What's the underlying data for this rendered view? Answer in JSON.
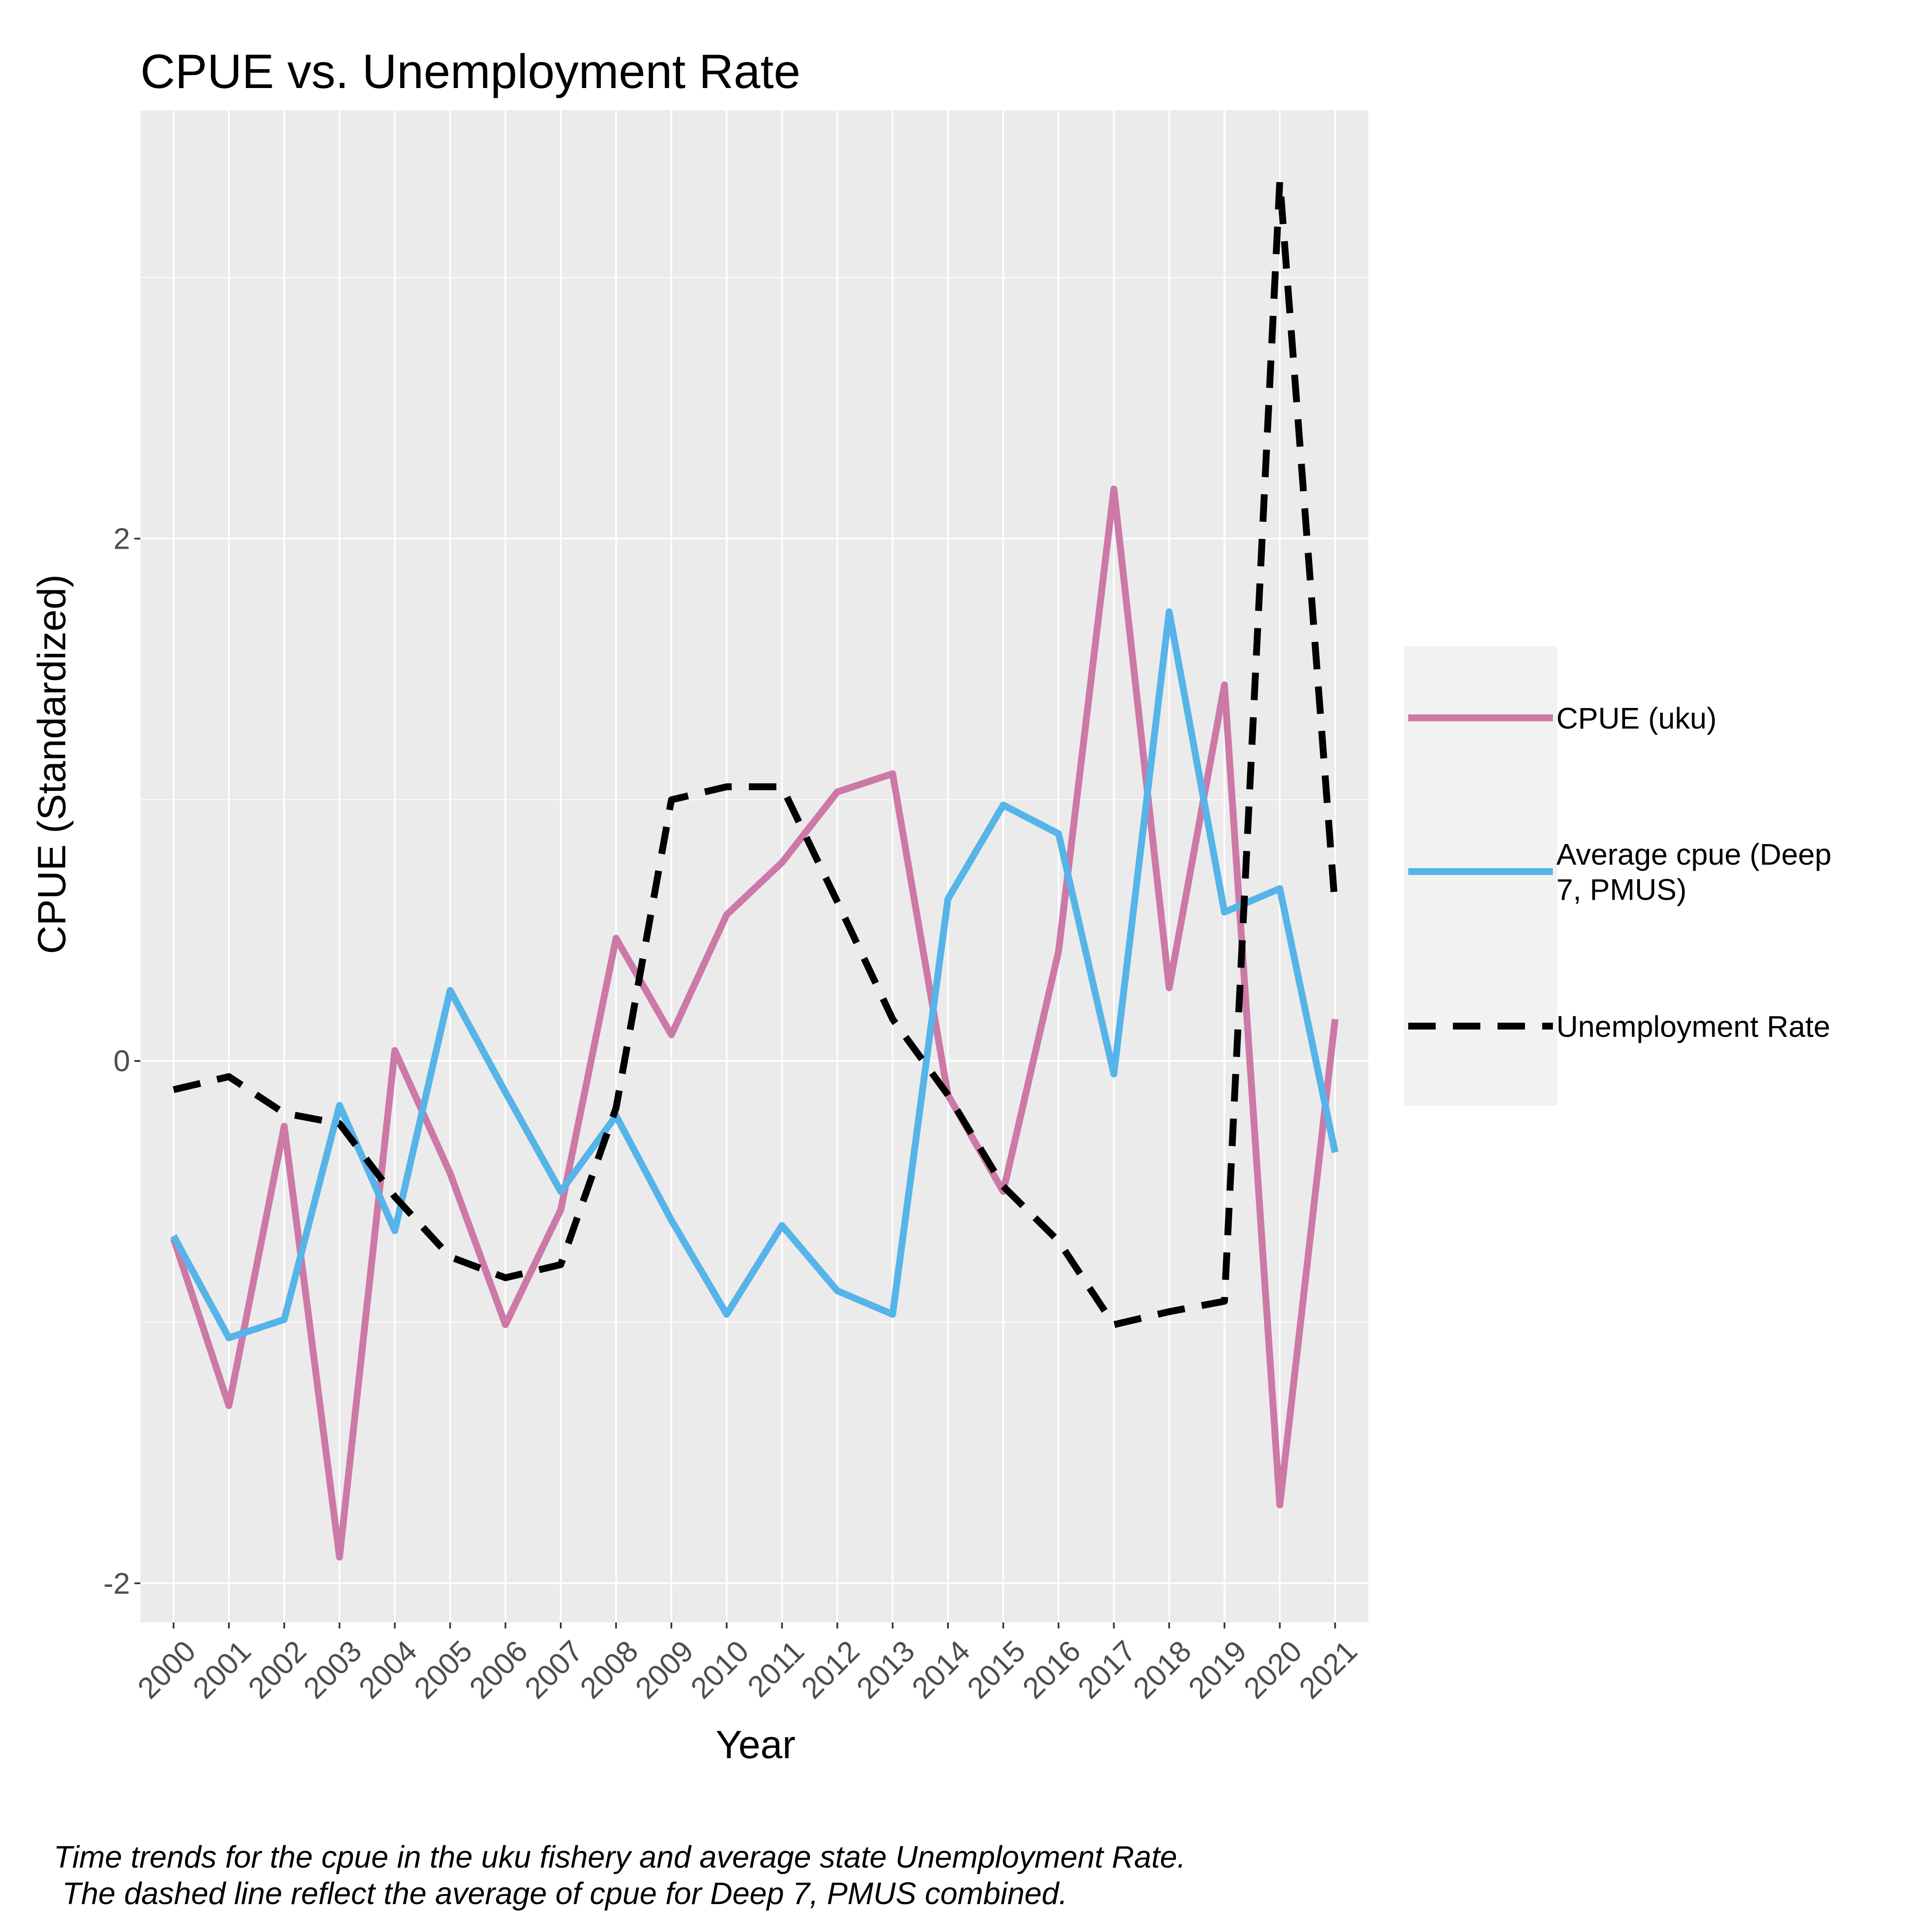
{
  "chart_data": {
    "type": "line",
    "title": "CPUE vs. Unemployment Rate",
    "xlabel": "Year",
    "ylabel": "CPUE (Standardized)",
    "x": [
      "2000",
      "2001",
      "2002",
      "2003",
      "2004",
      "2005",
      "2006",
      "2007",
      "2008",
      "2009",
      "2010",
      "2011",
      "2012",
      "2013",
      "2014",
      "2015",
      "2016",
      "2017",
      "2018",
      "2019",
      "2020",
      "2021"
    ],
    "yticks": [
      -2,
      0,
      2
    ],
    "ylim": [
      -2.15,
      3.64
    ],
    "grid": true,
    "legend_position": "right",
    "series": [
      {
        "name": "CPUE (uku)",
        "color": "#CC79A7",
        "dash": "solid",
        "values": [
          -0.68,
          -1.32,
          -0.25,
          -1.9,
          0.04,
          -0.43,
          -1.01,
          -0.57,
          0.47,
          0.1,
          0.56,
          0.76,
          1.03,
          1.1,
          -0.13,
          -0.5,
          0.42,
          2.19,
          0.28,
          1.44,
          -1.7,
          0.16
        ]
      },
      {
        "name": "Average cpue (Deep 7, PMUS)",
        "color": "#56B4E9",
        "dash": "solid",
        "values": [
          -0.67,
          -1.06,
          -0.99,
          -0.17,
          -0.65,
          0.27,
          -0.12,
          -0.5,
          -0.21,
          -0.61,
          -0.97,
          -0.63,
          -0.88,
          -0.97,
          0.62,
          0.98,
          0.87,
          -0.05,
          1.72,
          0.57,
          0.66,
          -0.35
        ]
      },
      {
        "name": "Unemployment Rate",
        "color": "#000000",
        "dash": "dashed",
        "values": [
          -0.11,
          -0.06,
          -0.2,
          -0.24,
          -0.52,
          -0.75,
          -0.83,
          -0.78,
          -0.18,
          1.0,
          1.05,
          1.05,
          0.61,
          0.16,
          -0.13,
          -0.48,
          -0.69,
          -1.01,
          -0.96,
          -0.92,
          3.37,
          0.59
        ]
      }
    ],
    "caption_lines": [
      "Time trends for the cpue in the uku fishery and average state Unemployment Rate.",
      " The dashed line reflect the average of cpue for Deep 7, PMUS combined."
    ]
  }
}
